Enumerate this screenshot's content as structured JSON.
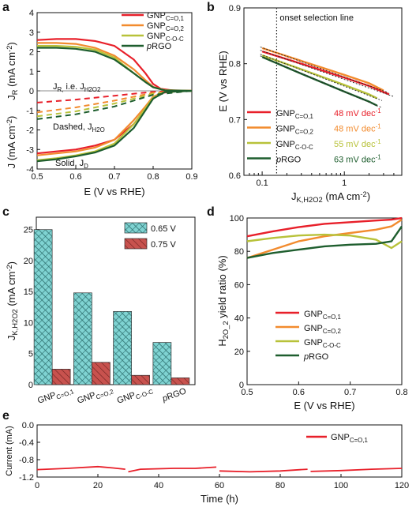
{
  "colors": {
    "c1": "#e8202a",
    "c2": "#f28b2e",
    "c3": "#b8c23a",
    "c4": "#1e5e2e",
    "cyan": "#7fd3d2",
    "red": "#c8524e"
  },
  "chart_data": [
    {
      "panel": "a",
      "type": "line",
      "xlabel": "E (V vs RHE)",
      "ylabel_top": "J_R (mA cm^-2)",
      "ylabel_bottom": "J (mA cm^-2)",
      "xlim": [
        0.5,
        0.9
      ],
      "ylim": [
        -4,
        4
      ],
      "xticks": [
        "0.5",
        "0.6",
        "0.7",
        "0.8",
        "0.9"
      ],
      "yticks": [
        "-4",
        "-3",
        "-2",
        "-1",
        "0",
        "1",
        "2",
        "3",
        "4"
      ],
      "annotations": [
        "J_R, i.e. J_H2O2",
        "Dashed, J_H2O",
        "Solid, J_D"
      ],
      "legend": [
        "GNP_C=O,1",
        "GNP_C=O,2",
        "GNP_C-O-C",
        "pRGO"
      ],
      "series": [
        {
          "name": "GNP_C=O,1",
          "color": "c1",
          "ring": [
            [
              0.5,
              2.6
            ],
            [
              0.55,
              2.65
            ],
            [
              0.6,
              2.65
            ],
            [
              0.65,
              2.55
            ],
            [
              0.7,
              2.3
            ],
            [
              0.75,
              1.6
            ],
            [
              0.78,
              0.9
            ],
            [
              0.8,
              0.35
            ],
            [
              0.82,
              0.1
            ],
            [
              0.85,
              0.02
            ],
            [
              0.9,
              0.0
            ]
          ],
          "disk": [
            [
              0.5,
              -3.2
            ],
            [
              0.55,
              -3.1
            ],
            [
              0.6,
              -3.0
            ],
            [
              0.65,
              -2.8
            ],
            [
              0.7,
              -2.5
            ],
            [
              0.75,
              -1.7
            ],
            [
              0.78,
              -0.9
            ],
            [
              0.8,
              -0.4
            ],
            [
              0.82,
              -0.12
            ],
            [
              0.85,
              -0.02
            ],
            [
              0.9,
              0.0
            ]
          ],
          "h2o": [
            [
              0.5,
              -0.6
            ],
            [
              0.6,
              -0.45
            ],
            [
              0.7,
              -0.25
            ],
            [
              0.8,
              -0.05
            ],
            [
              0.9,
              0.0
            ]
          ]
        },
        {
          "name": "GNP_C=O,2",
          "color": "c2",
          "ring": [
            [
              0.5,
              2.45
            ],
            [
              0.55,
              2.45
            ],
            [
              0.6,
              2.4
            ],
            [
              0.65,
              2.2
            ],
            [
              0.7,
              1.8
            ],
            [
              0.75,
              1.1
            ],
            [
              0.78,
              0.55
            ],
            [
              0.8,
              0.2
            ],
            [
              0.83,
              0.04
            ],
            [
              0.9,
              0.0
            ]
          ],
          "disk": [
            [
              0.5,
              -3.3
            ],
            [
              0.55,
              -3.2
            ],
            [
              0.6,
              -3.1
            ],
            [
              0.65,
              -2.9
            ],
            [
              0.7,
              -2.5
            ],
            [
              0.75,
              -1.5
            ],
            [
              0.78,
              -0.8
            ],
            [
              0.8,
              -0.3
            ],
            [
              0.83,
              -0.05
            ],
            [
              0.9,
              0.0
            ]
          ],
          "h2o": [
            [
              0.5,
              -1.1
            ],
            [
              0.6,
              -0.85
            ],
            [
              0.7,
              -0.5
            ],
            [
              0.8,
              -0.1
            ],
            [
              0.9,
              0.0
            ]
          ]
        },
        {
          "name": "GNP_C-O-C",
          "color": "c3",
          "ring": [
            [
              0.5,
              2.3
            ],
            [
              0.55,
              2.3
            ],
            [
              0.6,
              2.25
            ],
            [
              0.65,
              2.1
            ],
            [
              0.7,
              1.7
            ],
            [
              0.75,
              0.9
            ],
            [
              0.78,
              0.45
            ],
            [
              0.8,
              0.18
            ],
            [
              0.83,
              0.03
            ],
            [
              0.9,
              0.0
            ]
          ],
          "disk": [
            [
              0.5,
              -3.55
            ],
            [
              0.55,
              -3.45
            ],
            [
              0.6,
              -3.3
            ],
            [
              0.65,
              -3.1
            ],
            [
              0.7,
              -2.7
            ],
            [
              0.75,
              -1.7
            ],
            [
              0.78,
              -0.9
            ],
            [
              0.8,
              -0.35
            ],
            [
              0.83,
              -0.06
            ],
            [
              0.9,
              0.0
            ]
          ],
          "h2o": [
            [
              0.5,
              -1.3
            ],
            [
              0.6,
              -1.05
            ],
            [
              0.7,
              -0.65
            ],
            [
              0.8,
              -0.15
            ],
            [
              0.9,
              0.0
            ]
          ]
        },
        {
          "name": "pRGO",
          "color": "c4",
          "ring": [
            [
              0.5,
              2.2
            ],
            [
              0.55,
              2.2
            ],
            [
              0.6,
              2.15
            ],
            [
              0.65,
              2.0
            ],
            [
              0.7,
              1.6
            ],
            [
              0.75,
              0.9
            ],
            [
              0.78,
              0.45
            ],
            [
              0.8,
              0.18
            ],
            [
              0.83,
              0.03
            ],
            [
              0.9,
              0.0
            ]
          ],
          "disk": [
            [
              0.5,
              -3.6
            ],
            [
              0.55,
              -3.5
            ],
            [
              0.6,
              -3.35
            ],
            [
              0.65,
              -3.15
            ],
            [
              0.7,
              -2.8
            ],
            [
              0.75,
              -1.9
            ],
            [
              0.78,
              -1.0
            ],
            [
              0.8,
              -0.4
            ],
            [
              0.83,
              -0.06
            ],
            [
              0.9,
              0.0
            ]
          ],
          "h2o": [
            [
              0.5,
              -1.45
            ],
            [
              0.6,
              -1.2
            ],
            [
              0.7,
              -0.8
            ],
            [
              0.8,
              -0.2
            ],
            [
              0.9,
              0.0
            ]
          ]
        }
      ]
    },
    {
      "panel": "b",
      "type": "line",
      "xlabel": "J_K,H2O2 (mA cm^-2)",
      "ylabel": "E (V vs RHE)",
      "xscale": "log",
      "xlim": [
        0.06,
        5
      ],
      "ylim": [
        0.6,
        0.9
      ],
      "xticks": [
        "0.1",
        "1"
      ],
      "yticks": [
        "0.6",
        "0.7",
        "0.8",
        "0.9"
      ],
      "annotation": "onset selection line",
      "onset_x": 0.15,
      "slope_unit": "mV dec^-1",
      "series": [
        {
          "name": "GNP_C=O,1",
          "color": "c1",
          "slope": "48",
          "points": [
            [
              0.1,
              0.822
            ],
            [
              0.3,
              0.8
            ],
            [
              1,
              0.775
            ],
            [
              2,
              0.76
            ],
            [
              3.5,
              0.745
            ]
          ]
        },
        {
          "name": "GNP_C=O,2",
          "color": "c2",
          "slope": "48",
          "points": [
            [
              0.1,
              0.828
            ],
            [
              0.3,
              0.805
            ],
            [
              1,
              0.78
            ],
            [
              2,
              0.765
            ],
            [
              3,
              0.752
            ]
          ]
        },
        {
          "name": "GNP_C-O-C",
          "color": "c3",
          "slope": "55",
          "points": [
            [
              0.1,
              0.815
            ],
            [
              0.3,
              0.79
            ],
            [
              1,
              0.762
            ],
            [
              2,
              0.745
            ],
            [
              2.5,
              0.738
            ]
          ]
        },
        {
          "name": "pRGO",
          "color": "c4",
          "slope": "63",
          "points": [
            [
              0.1,
              0.812
            ],
            [
              0.3,
              0.782
            ],
            [
              1,
              0.75
            ],
            [
              2,
              0.732
            ],
            [
              2.5,
              0.725
            ]
          ]
        }
      ]
    },
    {
      "panel": "c",
      "type": "bar",
      "ylabel": "J_K,H2O2 (mA cm^-2)",
      "ylim": [
        0,
        27
      ],
      "yticks": [
        "0",
        "5",
        "10",
        "15",
        "20",
        "25"
      ],
      "categories": [
        "GNP_C=O,1",
        "GNP_C=O,2",
        "GNP_C-O-C",
        "pRGO"
      ],
      "series": [
        {
          "name": "0.65 V",
          "color": "cyan",
          "values": [
            25,
            14.8,
            11.8,
            6.8
          ]
        },
        {
          "name": "0.75 V",
          "color": "red",
          "values": [
            2.5,
            3.6,
            1.5,
            1.1
          ]
        }
      ]
    },
    {
      "panel": "d",
      "type": "line",
      "xlabel": "E (V vs RHE)",
      "ylabel": "H2O2 yield ratio (%)",
      "xlim": [
        0.5,
        0.8
      ],
      "ylim": [
        0,
        100
      ],
      "xticks": [
        "0.5",
        "0.6",
        "0.7",
        "0.8"
      ],
      "yticks": [
        "0",
        "20",
        "40",
        "60",
        "80",
        "100"
      ],
      "series": [
        {
          "name": "GNP_C=O,1",
          "color": "c1",
          "points": [
            [
              0.5,
              89
            ],
            [
              0.55,
              92
            ],
            [
              0.6,
              94.5
            ],
            [
              0.65,
              96.5
            ],
            [
              0.7,
              97.5
            ],
            [
              0.75,
              98.5
            ],
            [
              0.78,
              99
            ],
            [
              0.8,
              100
            ]
          ]
        },
        {
          "name": "GNP_C=O,2",
          "color": "c2",
          "points": [
            [
              0.5,
              76
            ],
            [
              0.55,
              81
            ],
            [
              0.6,
              86
            ],
            [
              0.65,
              89
            ],
            [
              0.7,
              91
            ],
            [
              0.75,
              93
            ],
            [
              0.78,
              95
            ],
            [
              0.8,
              99
            ]
          ]
        },
        {
          "name": "GNP_C-O-C",
          "color": "c3",
          "points": [
            [
              0.5,
              86
            ],
            [
              0.55,
              88
            ],
            [
              0.6,
              89.5
            ],
            [
              0.65,
              90
            ],
            [
              0.7,
              89.5
            ],
            [
              0.75,
              87
            ],
            [
              0.78,
              82
            ],
            [
              0.8,
              86
            ]
          ]
        },
        {
          "name": "pRGO",
          "color": "c4",
          "points": [
            [
              0.5,
              76
            ],
            [
              0.55,
              79
            ],
            [
              0.6,
              81
            ],
            [
              0.65,
              83
            ],
            [
              0.7,
              84
            ],
            [
              0.75,
              84.5
            ],
            [
              0.78,
              86
            ],
            [
              0.8,
              95
            ]
          ]
        }
      ]
    },
    {
      "panel": "e",
      "type": "line",
      "xlabel": "Time (h)",
      "ylabel": "Current (mA)",
      "xlim": [
        0,
        120
      ],
      "ylim": [
        -1.2,
        0.0
      ],
      "xticks": [
        "0",
        "20",
        "40",
        "60",
        "80",
        "100",
        "120"
      ],
      "yticks": [
        "0.0",
        "-0.4",
        "-0.8",
        "-1.2"
      ],
      "series": [
        {
          "name": "GNP_C=O,1",
          "color": "c1",
          "segments": [
            [
              [
                0,
                -1.03
              ],
              [
                10,
                -1.0
              ],
              [
                20,
                -0.96
              ],
              [
                25,
                -0.99
              ],
              [
                29,
                -1.02
              ]
            ],
            [
              [
                30,
                -1.08
              ],
              [
                34,
                -1.02
              ],
              [
                45,
                -1.0
              ],
              [
                52,
                -1.0
              ],
              [
                59,
                -0.97
              ]
            ],
            [
              [
                60,
                -1.06
              ],
              [
                70,
                -1.08
              ],
              [
                80,
                -1.06
              ],
              [
                89,
                -1.02
              ]
            ],
            [
              [
                90,
                -1.07
              ],
              [
                100,
                -1.05
              ],
              [
                110,
                -1.02
              ],
              [
                120,
                -1.0
              ]
            ]
          ]
        }
      ]
    }
  ],
  "panels": [
    "a",
    "b",
    "c",
    "d",
    "e"
  ]
}
